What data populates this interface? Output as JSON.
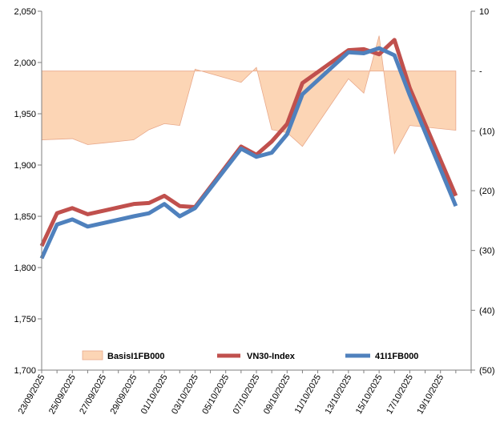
{
  "chart_data": {
    "type": "line",
    "title": "",
    "categories": [
      "23/09/2025",
      "24/09/2025",
      "25/09/2025",
      "26/09/2025",
      "29/09/2025",
      "30/09/2025",
      "01/10/2025",
      "02/10/2025",
      "03/10/2025",
      "06/10/2025",
      "07/10/2025",
      "08/10/2025",
      "09/10/2025",
      "10/10/2025",
      "13/10/2025",
      "14/10/2025",
      "15/10/2025",
      "16/10/2025",
      "17/10/2025",
      "20/10/2025"
    ],
    "x_tick_labels": [
      "23/09/2025",
      "25/09/2025",
      "27/09/2025",
      "29/09/2025",
      "01/10/2025",
      "03/10/2025",
      "05/10/2025",
      "07/10/2025",
      "09/10/2025",
      "11/10/2025",
      "13/10/2025",
      "15/10/2025",
      "17/10/2025",
      "19/10/2025"
    ],
    "x_dates": [
      [
        "2025-09-23",
        0
      ],
      [
        "2025-09-24",
        1
      ],
      [
        "2025-09-25",
        2
      ],
      [
        "2025-09-26",
        3
      ],
      [
        "2025-09-29",
        6
      ],
      [
        "2025-09-30",
        7
      ],
      [
        "2025-10-01",
        8
      ],
      [
        "2025-10-02",
        9
      ],
      [
        "2025-10-03",
        10
      ],
      [
        "2025-10-06",
        13
      ],
      [
        "2025-10-07",
        14
      ],
      [
        "2025-10-08",
        15
      ],
      [
        "2025-10-09",
        16
      ],
      [
        "2025-10-10",
        17
      ],
      [
        "2025-10-13",
        20
      ],
      [
        "2025-10-14",
        21
      ],
      [
        "2025-10-15",
        22
      ],
      [
        "2025-10-16",
        23
      ],
      [
        "2025-10-17",
        24
      ],
      [
        "2025-10-20",
        27
      ]
    ],
    "x_range_days": [
      0,
      28
    ],
    "y_left": {
      "min": 1700,
      "max": 2050,
      "ticks": [
        "1,700",
        "1,750",
        "1,800",
        "1,850",
        "1,900",
        "1,950",
        "2,000",
        "2,050"
      ],
      "tick_values": [
        1700,
        1750,
        1800,
        1850,
        1900,
        1950,
        2000,
        2050
      ]
    },
    "y_right": {
      "min": -50,
      "max": 10,
      "ticks": [
        "10",
        "-",
        "(10)",
        "(20)",
        "(30)",
        "(40)",
        "(50)"
      ],
      "tick_values": [
        10,
        0,
        -10,
        -20,
        -30,
        -40,
        -50
      ]
    },
    "series": [
      {
        "name": "BasisI1FB000",
        "kind": "area",
        "axis": "right",
        "color": "#FCD5B5",
        "edge_color": "#E8A88A",
        "points": [
          [
            0,
            -11.5
          ],
          [
            2,
            -11.3
          ],
          [
            3,
            -12.3
          ],
          [
            6,
            -11.5
          ],
          [
            7,
            -9.8
          ],
          [
            8,
            -8.8
          ],
          [
            9,
            -9.1
          ],
          [
            10,
            0.3
          ],
          [
            13,
            -1.9
          ],
          [
            14,
            0.6
          ],
          [
            15,
            -9.8
          ],
          [
            16,
            -10.3
          ],
          [
            17,
            -12.6
          ],
          [
            20,
            -1.3
          ],
          [
            21,
            -3.7
          ],
          [
            22,
            5.9
          ],
          [
            23,
            -13.8
          ],
          [
            24,
            -9.1
          ],
          [
            27,
            -9.9
          ]
        ]
      },
      {
        "name": "VN30-Index",
        "kind": "line",
        "axis": "left",
        "color": "#C0504D",
        "points": [
          [
            0,
            1821
          ],
          [
            1,
            1853
          ],
          [
            2,
            1858
          ],
          [
            3,
            1852
          ],
          [
            6,
            1862
          ],
          [
            7,
            1863
          ],
          [
            8,
            1870
          ],
          [
            9,
            1860
          ],
          [
            10,
            1859
          ],
          [
            13,
            1918
          ],
          [
            14,
            1910
          ],
          [
            15,
            1923
          ],
          [
            16,
            1940
          ],
          [
            17,
            1980
          ],
          [
            20,
            2012
          ],
          [
            21,
            2013
          ],
          [
            22,
            2008
          ],
          [
            23,
            2022
          ],
          [
            24,
            1975
          ],
          [
            27,
            1870
          ]
        ]
      },
      {
        "name": "41I1FB000",
        "kind": "line",
        "axis": "left",
        "color": "#4F81BD",
        "points": [
          [
            0,
            1809
          ],
          [
            1,
            1842
          ],
          [
            2,
            1847
          ],
          [
            3,
            1840
          ],
          [
            6,
            1850
          ],
          [
            7,
            1853
          ],
          [
            8,
            1862
          ],
          [
            9,
            1850
          ],
          [
            10,
            1858
          ],
          [
            13,
            1916
          ],
          [
            14,
            1908
          ],
          [
            15,
            1912
          ],
          [
            16,
            1930
          ],
          [
            17,
            1969
          ],
          [
            20,
            2010
          ],
          [
            21,
            2009
          ],
          [
            22,
            2014
          ],
          [
            23,
            2007
          ],
          [
            24,
            1968
          ],
          [
            27,
            1860
          ]
        ]
      }
    ],
    "legend": {
      "position": "bottom",
      "items": [
        "BasisI1FB000",
        "VN30-Index",
        "41I1FB000"
      ]
    },
    "grid": false
  }
}
